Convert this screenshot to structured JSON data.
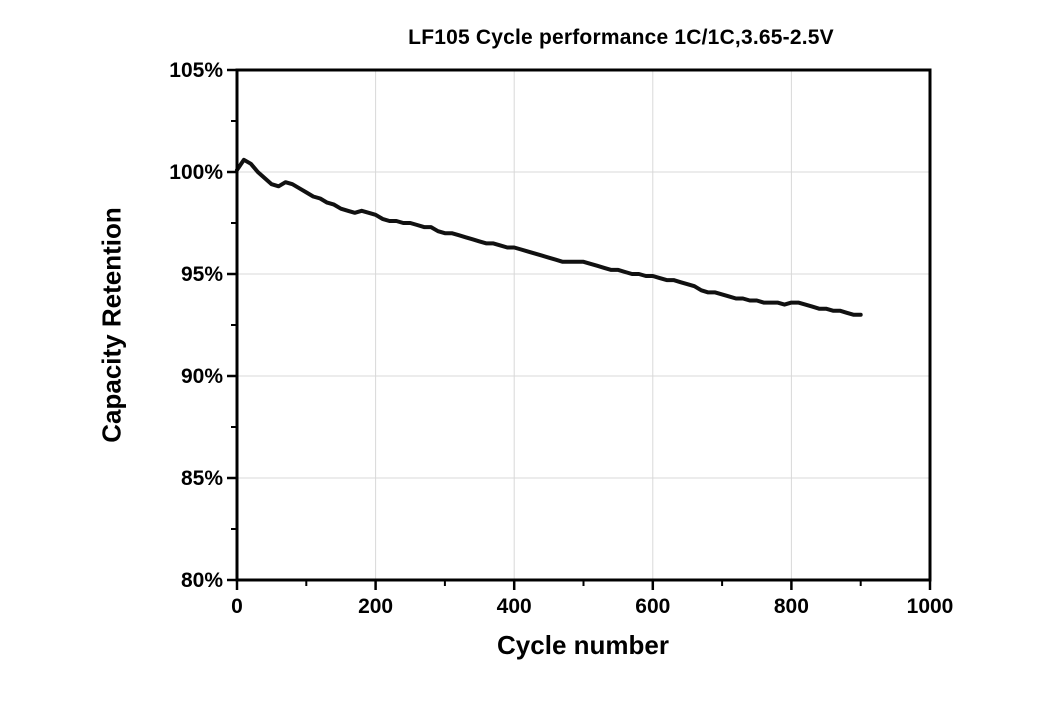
{
  "chart_data": {
    "type": "line",
    "title": "LF105 Cycle performance 1C/1C,3.65-2.5V",
    "xlabel": "Cycle number",
    "ylabel": "Capacity Retention",
    "xlim": [
      0,
      1000
    ],
    "ylim": [
      80,
      105
    ],
    "x_ticks": [
      0,
      200,
      400,
      600,
      800,
      1000
    ],
    "x_minor_ticks": [
      100,
      300,
      500,
      700,
      900
    ],
    "y_ticks": [
      80,
      85,
      90,
      95,
      100,
      105
    ],
    "y_minor_ticks": [
      82.5,
      87.5,
      92.5,
      97.5,
      102.5
    ],
    "y_tick_suffix": "%",
    "grid": true,
    "grid_color": "#d8d8d8",
    "frame_color": "#000000",
    "line_color": "#111111",
    "line_width": 4,
    "legend": "none",
    "series": [
      {
        "name": "Capacity Retention",
        "x": [
          0,
          10,
          20,
          30,
          40,
          50,
          60,
          70,
          80,
          90,
          100,
          110,
          120,
          130,
          140,
          150,
          160,
          170,
          180,
          190,
          200,
          210,
          220,
          230,
          240,
          250,
          260,
          270,
          280,
          290,
          300,
          310,
          320,
          330,
          340,
          350,
          360,
          370,
          380,
          390,
          400,
          410,
          420,
          430,
          440,
          450,
          460,
          470,
          480,
          490,
          500,
          510,
          520,
          530,
          540,
          550,
          560,
          570,
          580,
          590,
          600,
          610,
          620,
          630,
          640,
          650,
          660,
          670,
          680,
          690,
          700,
          710,
          720,
          730,
          740,
          750,
          760,
          770,
          780,
          790,
          800,
          810,
          820,
          830,
          840,
          850,
          860,
          870,
          880,
          890,
          900
        ],
        "y": [
          100.1,
          100.6,
          100.4,
          100.0,
          99.7,
          99.4,
          99.3,
          99.5,
          99.4,
          99.2,
          99.0,
          98.8,
          98.7,
          98.5,
          98.4,
          98.2,
          98.1,
          98.0,
          98.1,
          98.0,
          97.9,
          97.7,
          97.6,
          97.6,
          97.5,
          97.5,
          97.4,
          97.3,
          97.3,
          97.1,
          97.0,
          97.0,
          96.9,
          96.8,
          96.7,
          96.6,
          96.5,
          96.5,
          96.4,
          96.3,
          96.3,
          96.2,
          96.1,
          96.0,
          95.9,
          95.8,
          95.7,
          95.6,
          95.6,
          95.6,
          95.6,
          95.5,
          95.4,
          95.3,
          95.2,
          95.2,
          95.1,
          95.0,
          95.0,
          94.9,
          94.9,
          94.8,
          94.7,
          94.7,
          94.6,
          94.5,
          94.4,
          94.2,
          94.1,
          94.1,
          94.0,
          93.9,
          93.8,
          93.8,
          93.7,
          93.7,
          93.6,
          93.6,
          93.6,
          93.5,
          93.6,
          93.6,
          93.5,
          93.4,
          93.3,
          93.3,
          93.2,
          93.2,
          93.1,
          93.0,
          93.0
        ]
      }
    ]
  }
}
